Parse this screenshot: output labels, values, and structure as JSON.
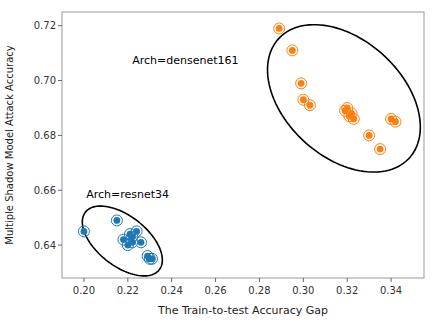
{
  "chart_data": {
    "type": "scatter",
    "xlabel": "The Train-to-test Accuracy Gap",
    "ylabel": "Multiple Shadow Model Attack Accuracy",
    "xlim": [
      0.19,
      0.355
    ],
    "ylim": [
      0.628,
      0.725
    ],
    "xticks": [
      {
        "value": 0.2,
        "label": "0.20"
      },
      0.22,
      0.24,
      0.26,
      0.28,
      {
        "value": 0.3,
        "label": "0.30"
      },
      0.32,
      0.34
    ],
    "yticks": [
      0.64,
      0.66,
      0.68,
      {
        "value": 0.7,
        "label": "0.70"
      },
      0.72
    ],
    "series": [
      {
        "color": "#1f77b4",
        "x": [
          0.2,
          0.215,
          0.218,
          0.22,
          0.221,
          0.222,
          0.222,
          0.224,
          0.226,
          0.229,
          0.23,
          0.231
        ],
        "values": [
          0.645,
          0.649,
          0.642,
          0.64,
          0.644,
          0.643,
          0.641,
          0.645,
          0.641,
          0.636,
          0.635,
          0.635
        ]
      },
      {
        "color": "#ff7f0e",
        "x": [
          0.289,
          0.295,
          0.299,
          0.3,
          0.303,
          0.319,
          0.32,
          0.321,
          0.322,
          0.323,
          0.33,
          0.335,
          0.34,
          0.342
        ],
        "values": [
          0.719,
          0.711,
          0.699,
          0.693,
          0.691,
          0.689,
          0.69,
          0.687,
          0.688,
          0.686,
          0.68,
          0.675,
          0.686,
          0.685
        ]
      }
    ],
    "ellipses": [
      {
        "cx": 0.2175,
        "cy": 0.6415,
        "width": 0.04,
        "height": 0.0195,
        "angle": -28
      },
      {
        "cx": 0.3185,
        "cy": 0.6935,
        "width": 0.075,
        "height": 0.046,
        "angle": -28
      }
    ],
    "annotations": [
      {
        "text": "Arch=densenet161",
        "x": 0.222,
        "y": 0.706
      },
      {
        "text": "Arch=resnet34",
        "x": 0.201,
        "y": 0.657
      }
    ]
  }
}
